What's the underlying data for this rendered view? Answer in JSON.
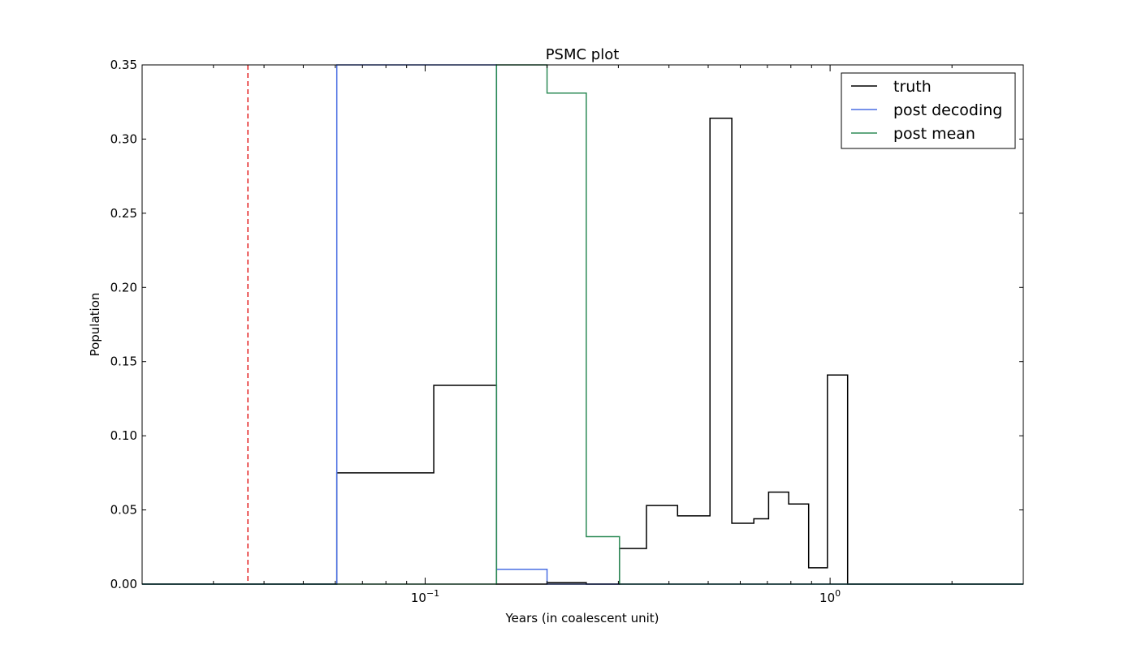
{
  "chart_data": {
    "type": "line",
    "title": "PSMC plot",
    "xlabel": "Years (in coalescent unit)",
    "ylabel": "Population",
    "xscale": "log",
    "xlim": [
      0.02,
      3.0
    ],
    "ylim": [
      0,
      0.35
    ],
    "yticks": [
      {
        "value": 0.0,
        "label": "0.00"
      },
      {
        "value": 0.05,
        "label": "0.05"
      },
      {
        "value": 0.1,
        "label": "0.10"
      },
      {
        "value": 0.15,
        "label": "0.15"
      },
      {
        "value": 0.2,
        "label": "0.20"
      },
      {
        "value": 0.25,
        "label": "0.25"
      },
      {
        "value": 0.3,
        "label": "0.30"
      },
      {
        "value": 0.35,
        "label": "0.35"
      }
    ],
    "xticks": [
      {
        "value": 0.1,
        "base": "10",
        "exp": "−1"
      },
      {
        "value": 1.0,
        "base": "10",
        "exp": "0"
      }
    ],
    "grid": false,
    "legend_position": "top-right",
    "series": [
      {
        "name": "truth",
        "color": "#000000",
        "style": "step",
        "points": [
          [
            0.02,
            0
          ],
          [
            0.0605,
            0
          ],
          [
            0.0605,
            0.075
          ],
          [
            0.105,
            0.075
          ],
          [
            0.105,
            0.134
          ],
          [
            0.15,
            0.134
          ],
          [
            0.15,
            0.0
          ],
          [
            0.2,
            0.0
          ],
          [
            0.2,
            0.001
          ],
          [
            0.25,
            0.001
          ],
          [
            0.25,
            0.0
          ],
          [
            0.302,
            0.0
          ],
          [
            0.302,
            0.024
          ],
          [
            0.352,
            0.024
          ],
          [
            0.352,
            0.053
          ],
          [
            0.42,
            0.053
          ],
          [
            0.42,
            0.046
          ],
          [
            0.505,
            0.046
          ],
          [
            0.505,
            0.314
          ],
          [
            0.572,
            0.314
          ],
          [
            0.572,
            0.041
          ],
          [
            0.648,
            0.041
          ],
          [
            0.648,
            0.044
          ],
          [
            0.705,
            0.044
          ],
          [
            0.705,
            0.062
          ],
          [
            0.79,
            0.062
          ],
          [
            0.79,
            0.054
          ],
          [
            0.885,
            0.054
          ],
          [
            0.885,
            0.011
          ],
          [
            0.985,
            0.011
          ],
          [
            0.985,
            0.141
          ],
          [
            1.105,
            0.141
          ],
          [
            1.105,
            0
          ],
          [
            3.0,
            0
          ]
        ]
      },
      {
        "name": "post decoding",
        "color": "#4a6fe3",
        "style": "step",
        "points": [
          [
            0.02,
            0
          ],
          [
            0.0605,
            0
          ],
          [
            0.0605,
            0.35
          ],
          [
            0.0605,
            0.35
          ],
          [
            0.15,
            0.35
          ],
          [
            0.15,
            0.01
          ],
          [
            0.2,
            0.01
          ],
          [
            0.2,
            0
          ],
          [
            3.0,
            0
          ]
        ]
      },
      {
        "name": "post mean",
        "color": "#2e8b57",
        "style": "step",
        "points": [
          [
            0.02,
            0
          ],
          [
            0.15,
            0
          ],
          [
            0.15,
            0.35
          ],
          [
            0.2,
            0.35
          ],
          [
            0.2,
            0.331
          ],
          [
            0.25,
            0.331
          ],
          [
            0.25,
            0.032
          ],
          [
            0.302,
            0.032
          ],
          [
            0.302,
            0
          ],
          [
            3.0,
            0
          ]
        ]
      }
    ],
    "vline": {
      "x": 0.0365,
      "color": "#e31a1c",
      "style": "dashed"
    }
  }
}
